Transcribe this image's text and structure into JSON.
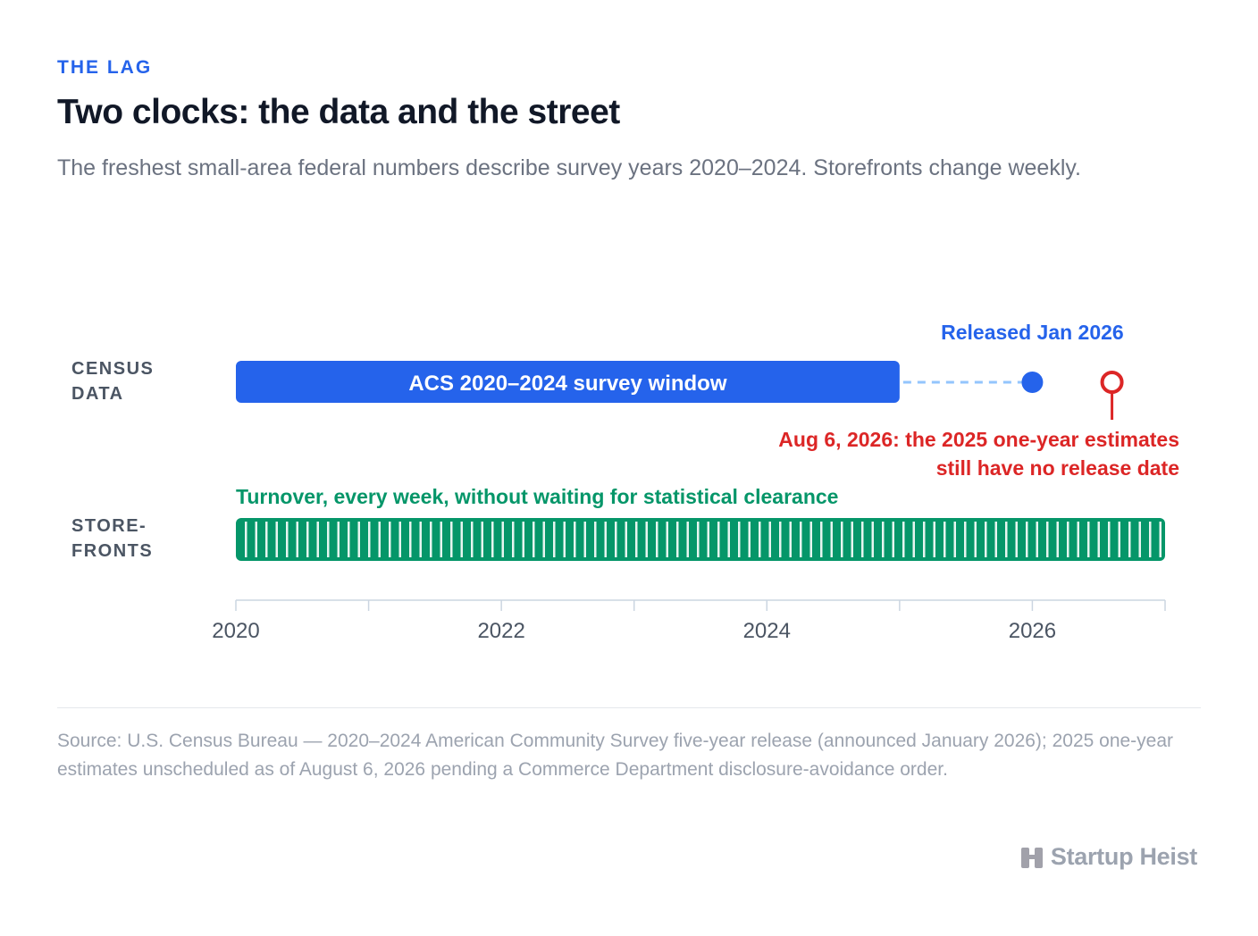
{
  "header": {
    "kicker": "THE LAG",
    "title": "Two clocks: the data and the street",
    "subtitle": "The freshest small-area federal numbers describe survey years 2020–2024. Storefronts change weekly."
  },
  "chart_data": {
    "type": "timeline",
    "xlim": [
      2020,
      2027
    ],
    "x_ticks_labeled": [
      "2020",
      "2022",
      "2024",
      "2026"
    ],
    "x_ticks_minor": [
      2021,
      2023,
      2025,
      2027
    ],
    "rows": [
      {
        "label_lines": [
          "CENSUS",
          "DATA"
        ],
        "survey_window": {
          "start": 2020,
          "end": 2025,
          "label": "ACS 2020–2024 survey window"
        },
        "release": {
          "x": 2026.0,
          "label": "Released Jan 2026"
        },
        "pending": {
          "x": 2026.6,
          "label_lines": [
            "Aug 6, 2026: the 2025 one-year estimates",
            "still have no release date"
          ]
        }
      },
      {
        "label_lines": [
          "STORE-",
          "FRONTS"
        ],
        "turnover": {
          "start": 2020,
          "end": 2027,
          "label": "Turnover, every week, without waiting for statistical clearance"
        }
      }
    ],
    "grid": false
  },
  "colors": {
    "blue": "#2563eb",
    "blue_light": "#93c5fd",
    "red": "#dc2626",
    "green": "#059669",
    "axis": "#cbd5e1"
  },
  "footer": {
    "source": "Source: U.S. Census Bureau — 2020–2024 American Community Survey five-year release (announced January 2026); 2025 one-year estimates unscheduled as of August 6, 2026 pending a Commerce Department disclosure-avoidance order.",
    "brand": "Startup Heist",
    "brand_icon": "building-icon"
  }
}
